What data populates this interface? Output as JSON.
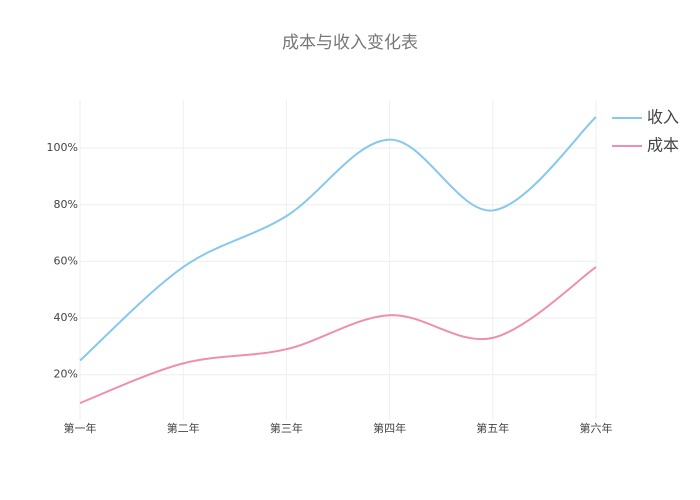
{
  "chart_data": {
    "type": "line",
    "title": "成本与收入变化表",
    "categories": [
      "第一年",
      "第二年",
      "第三年",
      "第四年",
      "第五年",
      "第六年"
    ],
    "series": [
      {
        "name": "收入",
        "color": "#88c8ee",
        "values": [
          25,
          58,
          76,
          103,
          78,
          111
        ]
      },
      {
        "name": "成本",
        "color": "#ee8fb2",
        "values": [
          10,
          24,
          29,
          41,
          33,
          58
        ]
      }
    ],
    "ylim": [
      4,
      117
    ],
    "yticks": [
      {
        "value": 20,
        "label": "20%"
      },
      {
        "value": 40,
        "label": "40%"
      },
      {
        "value": 60,
        "label": "60%"
      },
      {
        "value": 80,
        "label": "80%"
      },
      {
        "value": 100,
        "label": "100%"
      }
    ],
    "grid": true,
    "smooth": true,
    "legend": "top-right"
  }
}
